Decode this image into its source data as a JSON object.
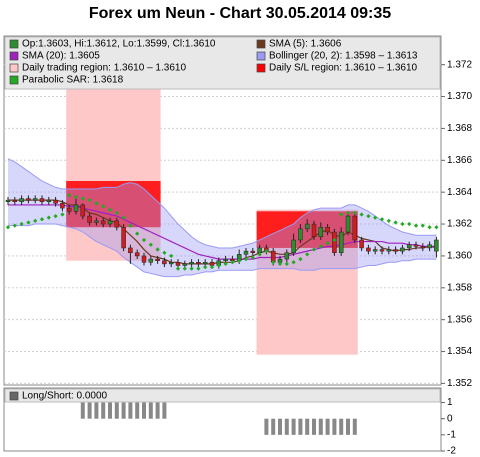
{
  "chart_data": {
    "type": "candlestick",
    "title": "Forex um Neun - Chart 30.05.2014 09:35",
    "ylim": [
      1.3519,
      1.3738
    ],
    "yticks": [
      1.352,
      1.354,
      1.356,
      1.358,
      {
        "value": 1.36,
        "label": "1.360"
      },
      1.362,
      1.364,
      1.366,
      1.368,
      {
        "value": 1.37,
        "label": "1.370"
      },
      1.372
    ],
    "grid": true,
    "candles": {
      "name": "Op:1.3603, Hi:1.3612, Lo:1.3599, Cl:1.3610",
      "color": "#2e8b2e",
      "down_color": "#cc1f1f",
      "open": [
        1.3634,
        1.3635,
        1.3634,
        1.3636,
        1.3635,
        1.3636,
        1.3634,
        1.3635,
        1.3633,
        1.363,
        1.3628,
        1.3632,
        1.3625,
        1.3621,
        1.3622,
        1.362,
        1.3622,
        1.3618,
        1.3605,
        1.3602,
        1.36,
        1.3596,
        1.3598,
        1.3597,
        1.3595,
        1.3596,
        1.3594,
        1.3595,
        1.3596,
        1.3595,
        1.3596,
        1.3594,
        1.3597,
        1.3598,
        1.3597,
        1.3601,
        1.3603,
        1.3602,
        1.3605,
        1.3603,
        1.3596,
        1.3598,
        1.3602,
        1.361,
        1.3617,
        1.362,
        1.3612,
        1.3618,
        1.3615,
        1.3602,
        1.3615,
        1.3625,
        1.361,
        1.3605,
        1.3603,
        1.3604,
        1.3603,
        1.3604,
        1.3603,
        1.3605,
        1.3607,
        1.3606,
        1.3605,
        1.3603
      ],
      "high": [
        1.3637,
        1.3637,
        1.3638,
        1.3638,
        1.3638,
        1.3638,
        1.3637,
        1.3637,
        1.3635,
        1.3632,
        1.3636,
        1.3633,
        1.3627,
        1.3624,
        1.3624,
        1.3624,
        1.3624,
        1.362,
        1.3607,
        1.3604,
        1.3602,
        1.36,
        1.36,
        1.3599,
        1.3598,
        1.3598,
        1.3597,
        1.3598,
        1.3598,
        1.3598,
        1.3598,
        1.3599,
        1.36,
        1.36,
        1.3604,
        1.3605,
        1.3605,
        1.3607,
        1.3607,
        1.3605,
        1.36,
        1.3604,
        1.3614,
        1.362,
        1.3623,
        1.3622,
        1.3621,
        1.362,
        1.3617,
        1.3618,
        1.3627,
        1.3626,
        1.3612,
        1.3607,
        1.3606,
        1.3606,
        1.3606,
        1.3606,
        1.3607,
        1.3609,
        1.3609,
        1.3608,
        1.3609,
        1.3612
      ],
      "low": [
        1.3632,
        1.3632,
        1.3632,
        1.3633,
        1.3633,
        1.3632,
        1.3632,
        1.3631,
        1.3628,
        1.3626,
        1.3626,
        1.3623,
        1.3619,
        1.3619,
        1.3618,
        1.3618,
        1.3616,
        1.3603,
        1.3595,
        1.3598,
        1.3594,
        1.3594,
        1.3595,
        1.3593,
        1.3593,
        1.3592,
        1.3593,
        1.3593,
        1.3593,
        1.3593,
        1.3592,
        1.3592,
        1.3595,
        1.3595,
        1.3595,
        1.3599,
        1.36,
        1.36,
        1.3601,
        1.3594,
        1.3594,
        1.3596,
        1.36,
        1.3608,
        1.3615,
        1.361,
        1.361,
        1.3613,
        1.36,
        1.36,
        1.3613,
        1.3608,
        1.3603,
        1.3601,
        1.3601,
        1.3601,
        1.3601,
        1.3601,
        1.3601,
        1.3603,
        1.3604,
        1.3603,
        1.3603,
        1.3599
      ],
      "close": [
        1.3635,
        1.3634,
        1.3636,
        1.3635,
        1.3636,
        1.3634,
        1.3635,
        1.3633,
        1.363,
        1.3628,
        1.3632,
        1.3625,
        1.3621,
        1.3622,
        1.362,
        1.3622,
        1.3618,
        1.3605,
        1.3602,
        1.36,
        1.3596,
        1.3598,
        1.3597,
        1.3595,
        1.3596,
        1.3594,
        1.3595,
        1.3596,
        1.3595,
        1.3596,
        1.3594,
        1.3597,
        1.3598,
        1.3597,
        1.3601,
        1.3603,
        1.3602,
        1.3605,
        1.3603,
        1.3596,
        1.3598,
        1.3602,
        1.361,
        1.3617,
        1.362,
        1.3612,
        1.3618,
        1.3615,
        1.3602,
        1.3615,
        1.3625,
        1.361,
        1.3605,
        1.3603,
        1.3604,
        1.3603,
        1.3604,
        1.3603,
        1.3605,
        1.3607,
        1.3606,
        1.3605,
        1.3607,
        1.361
      ]
    },
    "series": [
      {
        "name": "SMA (5): 1.3606",
        "color": "#6b3a1e",
        "values": [
          1.3635,
          1.3635,
          1.3635,
          1.3635,
          1.3635,
          1.3635,
          1.3635,
          1.3635,
          1.3634,
          1.3632,
          1.3632,
          1.363,
          1.3627,
          1.3626,
          1.3624,
          1.3622,
          1.3621,
          1.3617,
          1.3613,
          1.3609,
          1.3604,
          1.36,
          1.3599,
          1.3598,
          1.3596,
          1.3596,
          1.3595,
          1.3595,
          1.3595,
          1.3595,
          1.3595,
          1.3596,
          1.3596,
          1.3596,
          1.3597,
          1.3599,
          1.36,
          1.3602,
          1.3603,
          1.3602,
          1.3601,
          1.3601,
          1.3602,
          1.3606,
          1.3609,
          1.3612,
          1.3615,
          1.3616,
          1.3613,
          1.3612,
          1.3615,
          1.3613,
          1.3611,
          1.361,
          1.3609,
          1.3605,
          1.3604,
          1.3603,
          1.3604,
          1.3604,
          1.3605,
          1.3605,
          1.3606,
          1.3606
        ]
      },
      {
        "name": "SMA (20): 1.3605",
        "color": "#a020c0",
        "values": [
          1.3632,
          1.3632,
          1.3632,
          1.3632,
          1.3632,
          1.3632,
          1.3632,
          1.3632,
          1.3632,
          1.3631,
          1.3631,
          1.363,
          1.3629,
          1.3628,
          1.3627,
          1.3626,
          1.3625,
          1.3623,
          1.3621,
          1.3619,
          1.3617,
          1.3615,
          1.3613,
          1.3611,
          1.3609,
          1.3607,
          1.3605,
          1.3603,
          1.3601,
          1.36,
          1.3599,
          1.3598,
          1.3598,
          1.3598,
          1.3598,
          1.3598,
          1.3598,
          1.3599,
          1.3599,
          1.3599,
          1.3599,
          1.36,
          1.3601,
          1.3602,
          1.3603,
          1.3604,
          1.3605,
          1.3606,
          1.3606,
          1.3607,
          1.3608,
          1.3609,
          1.3609,
          1.3609,
          1.3609,
          1.3609,
          1.3608,
          1.3608,
          1.3608,
          1.3607,
          1.3607,
          1.3606,
          1.3606,
          1.3605
        ]
      },
      {
        "name": "Bollinger (20, 2): 1.3598 – 1.3613",
        "color": "#9a9af5",
        "upper": [
          1.3661,
          1.3659,
          1.3656,
          1.3653,
          1.365,
          1.3647,
          1.3645,
          1.3643,
          1.3642,
          1.3642,
          1.3642,
          1.3642,
          1.3642,
          1.3642,
          1.3643,
          1.3643,
          1.3643,
          1.3645,
          1.3646,
          1.3645,
          1.3642,
          1.3638,
          1.3634,
          1.363,
          1.3625,
          1.362,
          1.3616,
          1.3612,
          1.3609,
          1.3607,
          1.3606,
          1.3605,
          1.3605,
          1.3605,
          1.3606,
          1.3607,
          1.3608,
          1.361,
          1.3612,
          1.3614,
          1.3616,
          1.3618,
          1.362,
          1.3624,
          1.3627,
          1.3629,
          1.363,
          1.363,
          1.363,
          1.363,
          1.3632,
          1.3632,
          1.363,
          1.3628,
          1.3625,
          1.3622,
          1.3619,
          1.3617,
          1.3615,
          1.3614,
          1.3613,
          1.3613,
          1.3613,
          1.3613
        ],
        "lower": [
          1.3619,
          1.3619,
          1.3619,
          1.3619,
          1.362,
          1.362,
          1.362,
          1.362,
          1.3619,
          1.3618,
          1.3617,
          1.3615,
          1.3612,
          1.3609,
          1.3607,
          1.3605,
          1.3603,
          1.3599,
          1.3596,
          1.3593,
          1.359,
          1.3589,
          1.3588,
          1.3587,
          1.3587,
          1.3587,
          1.3588,
          1.3588,
          1.3589,
          1.359,
          1.359,
          1.3591,
          1.3591,
          1.3591,
          1.3591,
          1.3591,
          1.3591,
          1.3592,
          1.3592,
          1.3592,
          1.3592,
          1.3592,
          1.3592,
          1.3591,
          1.3591,
          1.3591,
          1.3592,
          1.3592,
          1.3592,
          1.3592,
          1.3592,
          1.3592,
          1.3593,
          1.3594,
          1.3594,
          1.3595,
          1.3596,
          1.3596,
          1.3597,
          1.3597,
          1.3598,
          1.3598,
          1.3598,
          1.3598
        ]
      },
      {
        "name": "Daily trading region: 1.3610 – 1.3610",
        "color": "#ffc8c8",
        "regions": [
          {
            "from": 9,
            "to": 22,
            "low": 1.3597,
            "high": 1.3707
          },
          {
            "from": 37,
            "to": 51,
            "low": 1.3538,
            "high": 1.3629
          }
        ]
      },
      {
        "name": "Daily S/L region: 1.3610 – 1.3610",
        "color": "#ff0000",
        "regions": [
          {
            "from": 9,
            "to": 22,
            "low": 1.3618,
            "high": 1.3647
          },
          {
            "from": 37,
            "to": 51,
            "low": 1.3605,
            "high": 1.3628
          }
        ]
      },
      {
        "name": "Parabolic SAR: 1.3618",
        "color": "#22aa22",
        "values": [
          1.3618,
          1.3619,
          1.362,
          1.3621,
          1.3622,
          1.3623,
          1.3624,
          1.3625,
          1.3626,
          1.3638,
          1.3637,
          1.3636,
          1.3635,
          1.3633,
          1.3631,
          1.3629,
          1.3627,
          1.3624,
          1.3619,
          1.3614,
          1.361,
          1.3607,
          1.3604,
          1.3602,
          1.36,
          1.3592,
          1.3592,
          1.3592,
          1.3592,
          1.3593,
          1.3593,
          1.3594,
          1.3595,
          1.3596,
          1.3597,
          1.3598,
          1.3599,
          1.3601,
          1.3603,
          1.3596,
          1.3595,
          1.3595,
          1.3596,
          1.3598,
          1.3601,
          1.3604,
          1.3606,
          1.3608,
          1.361,
          1.3626,
          1.3627,
          1.3627,
          1.3626,
          1.3625,
          1.3624,
          1.3623,
          1.3622,
          1.3621,
          1.362,
          1.362,
          1.3619,
          1.3619,
          1.3618,
          1.3618
        ]
      }
    ],
    "lower": {
      "name": "Long/Short: 0.0000",
      "color": "#888888",
      "ylim": [
        -2,
        1.9
      ],
      "yticks": [
        1,
        0,
        -1,
        -2
      ],
      "values": [
        0,
        0,
        0,
        0,
        0,
        0,
        0,
        0,
        0,
        0,
        0,
        1,
        1,
        1,
        1,
        1,
        1,
        1,
        1,
        1,
        1,
        1,
        1,
        1,
        0,
        0,
        0,
        0,
        0,
        0,
        0,
        0,
        0,
        0,
        0,
        0,
        0,
        0,
        -1,
        -1,
        -1,
        -1,
        -1,
        -1,
        -1,
        -1,
        -1,
        -1,
        -1,
        -1,
        -1,
        -1,
        0,
        0,
        0,
        0,
        0,
        0,
        0,
        0,
        0,
        0,
        0,
        0
      ]
    }
  }
}
